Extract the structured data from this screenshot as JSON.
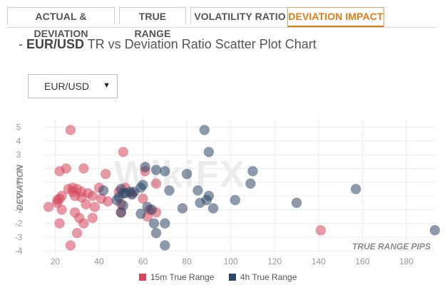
{
  "tabs": [
    {
      "label": "ACTUAL & DEVIATION",
      "active": false
    },
    {
      "label": "TRUE RANGE",
      "active": false
    },
    {
      "label": "VOLATILITY RATIO",
      "active": false
    },
    {
      "label": "DEVIATION IMPACT",
      "active": true
    }
  ],
  "header": {
    "prefix": "- ",
    "pair": "EUR/USD",
    "title_rest": " TR vs Deviation Ratio Scatter Plot Chart"
  },
  "selector": {
    "value": "EUR/USD",
    "caret": "▼"
  },
  "watermark": "WikiFX",
  "colors": {
    "series_15m": "#d6455d",
    "series_4h": "#2f4766",
    "accent": "#e07b1a"
  },
  "chart_data": {
    "type": "scatter",
    "xlabel": "TRUE RANGE PIPS",
    "ylabel": "DEVIATION",
    "xlim": [
      15,
      193
    ],
    "ylim": [
      -4.2,
      5.6
    ],
    "xticks": [
      20,
      40,
      60,
      80,
      100,
      120,
      140,
      160,
      180
    ],
    "yticks": [
      5,
      4,
      3,
      2,
      1,
      0,
      -1,
      -2,
      -3,
      -4
    ],
    "grid": true,
    "legend_position": "bottom",
    "series": [
      {
        "name": "15m True Range",
        "points": [
          [
            17,
            -0.8
          ],
          [
            21,
            -0.3
          ],
          [
            21,
            -0.5
          ],
          [
            22,
            -0.2
          ],
          [
            22,
            1.8
          ],
          [
            22,
            -2
          ],
          [
            23,
            0
          ],
          [
            23,
            -1
          ],
          [
            25,
            2
          ],
          [
            26,
            0.5
          ],
          [
            27,
            -3.6
          ],
          [
            27,
            4.8
          ],
          [
            28,
            0.6
          ],
          [
            28,
            0.3
          ],
          [
            29,
            0
          ],
          [
            29,
            -1.2
          ],
          [
            30,
            -2.7
          ],
          [
            30,
            0.5
          ],
          [
            31,
            -1.6
          ],
          [
            32,
            0.3
          ],
          [
            32,
            -0.1
          ],
          [
            33,
            2
          ],
          [
            33,
            -2
          ],
          [
            34,
            -0.6
          ],
          [
            35,
            0.2
          ],
          [
            37,
            0
          ],
          [
            37,
            -1.6
          ],
          [
            38,
            -0.8
          ],
          [
            40,
            0.6
          ],
          [
            41,
            -0.2
          ],
          [
            43,
            1.6
          ],
          [
            44,
            -0.4
          ],
          [
            49,
            0.3
          ],
          [
            50,
            -1.2
          ],
          [
            50,
            -0.6
          ],
          [
            51,
            3.2
          ],
          [
            52,
            0.6
          ],
          [
            55,
            0.2
          ],
          [
            60,
            -0.2
          ],
          [
            61,
            1.8
          ],
          [
            62,
            -1.5
          ],
          [
            63,
            -1
          ],
          [
            66,
            0.9
          ],
          [
            66,
            -1.2
          ],
          [
            141,
            -2.5
          ]
        ]
      },
      {
        "name": "4h True Range",
        "points": [
          [
            42,
            0.4
          ],
          [
            48,
            -0.3
          ],
          [
            49,
            -0.1
          ],
          [
            50,
            0.5
          ],
          [
            50,
            -1.2
          ],
          [
            51,
            0.2
          ],
          [
            51,
            -0.7
          ],
          [
            52,
            0.2
          ],
          [
            54,
            0.3
          ],
          [
            55,
            0.1
          ],
          [
            56,
            0.3
          ],
          [
            59,
            0.6
          ],
          [
            59,
            -1.3
          ],
          [
            60,
            0.8
          ],
          [
            61,
            2.1
          ],
          [
            62,
            -0.8
          ],
          [
            64,
            -1
          ],
          [
            65,
            -2
          ],
          [
            66,
            -2.7
          ],
          [
            66,
            1.9
          ],
          [
            70,
            -2
          ],
          [
            70,
            -3.6
          ],
          [
            70,
            1.8
          ],
          [
            72,
            0.4
          ],
          [
            78,
            -0.9
          ],
          [
            80,
            1.6
          ],
          [
            85,
            0.4
          ],
          [
            86,
            -0.5
          ],
          [
            88,
            4.8
          ],
          [
            89,
            -0.3
          ],
          [
            90,
            3.2
          ],
          [
            90,
            0
          ],
          [
            92,
            -0.9
          ],
          [
            102,
            -0.3
          ],
          [
            109,
            0.9
          ],
          [
            110,
            1.8
          ],
          [
            130,
            -0.5
          ],
          [
            157,
            0.5
          ],
          [
            193,
            -2.5
          ]
        ]
      }
    ]
  }
}
